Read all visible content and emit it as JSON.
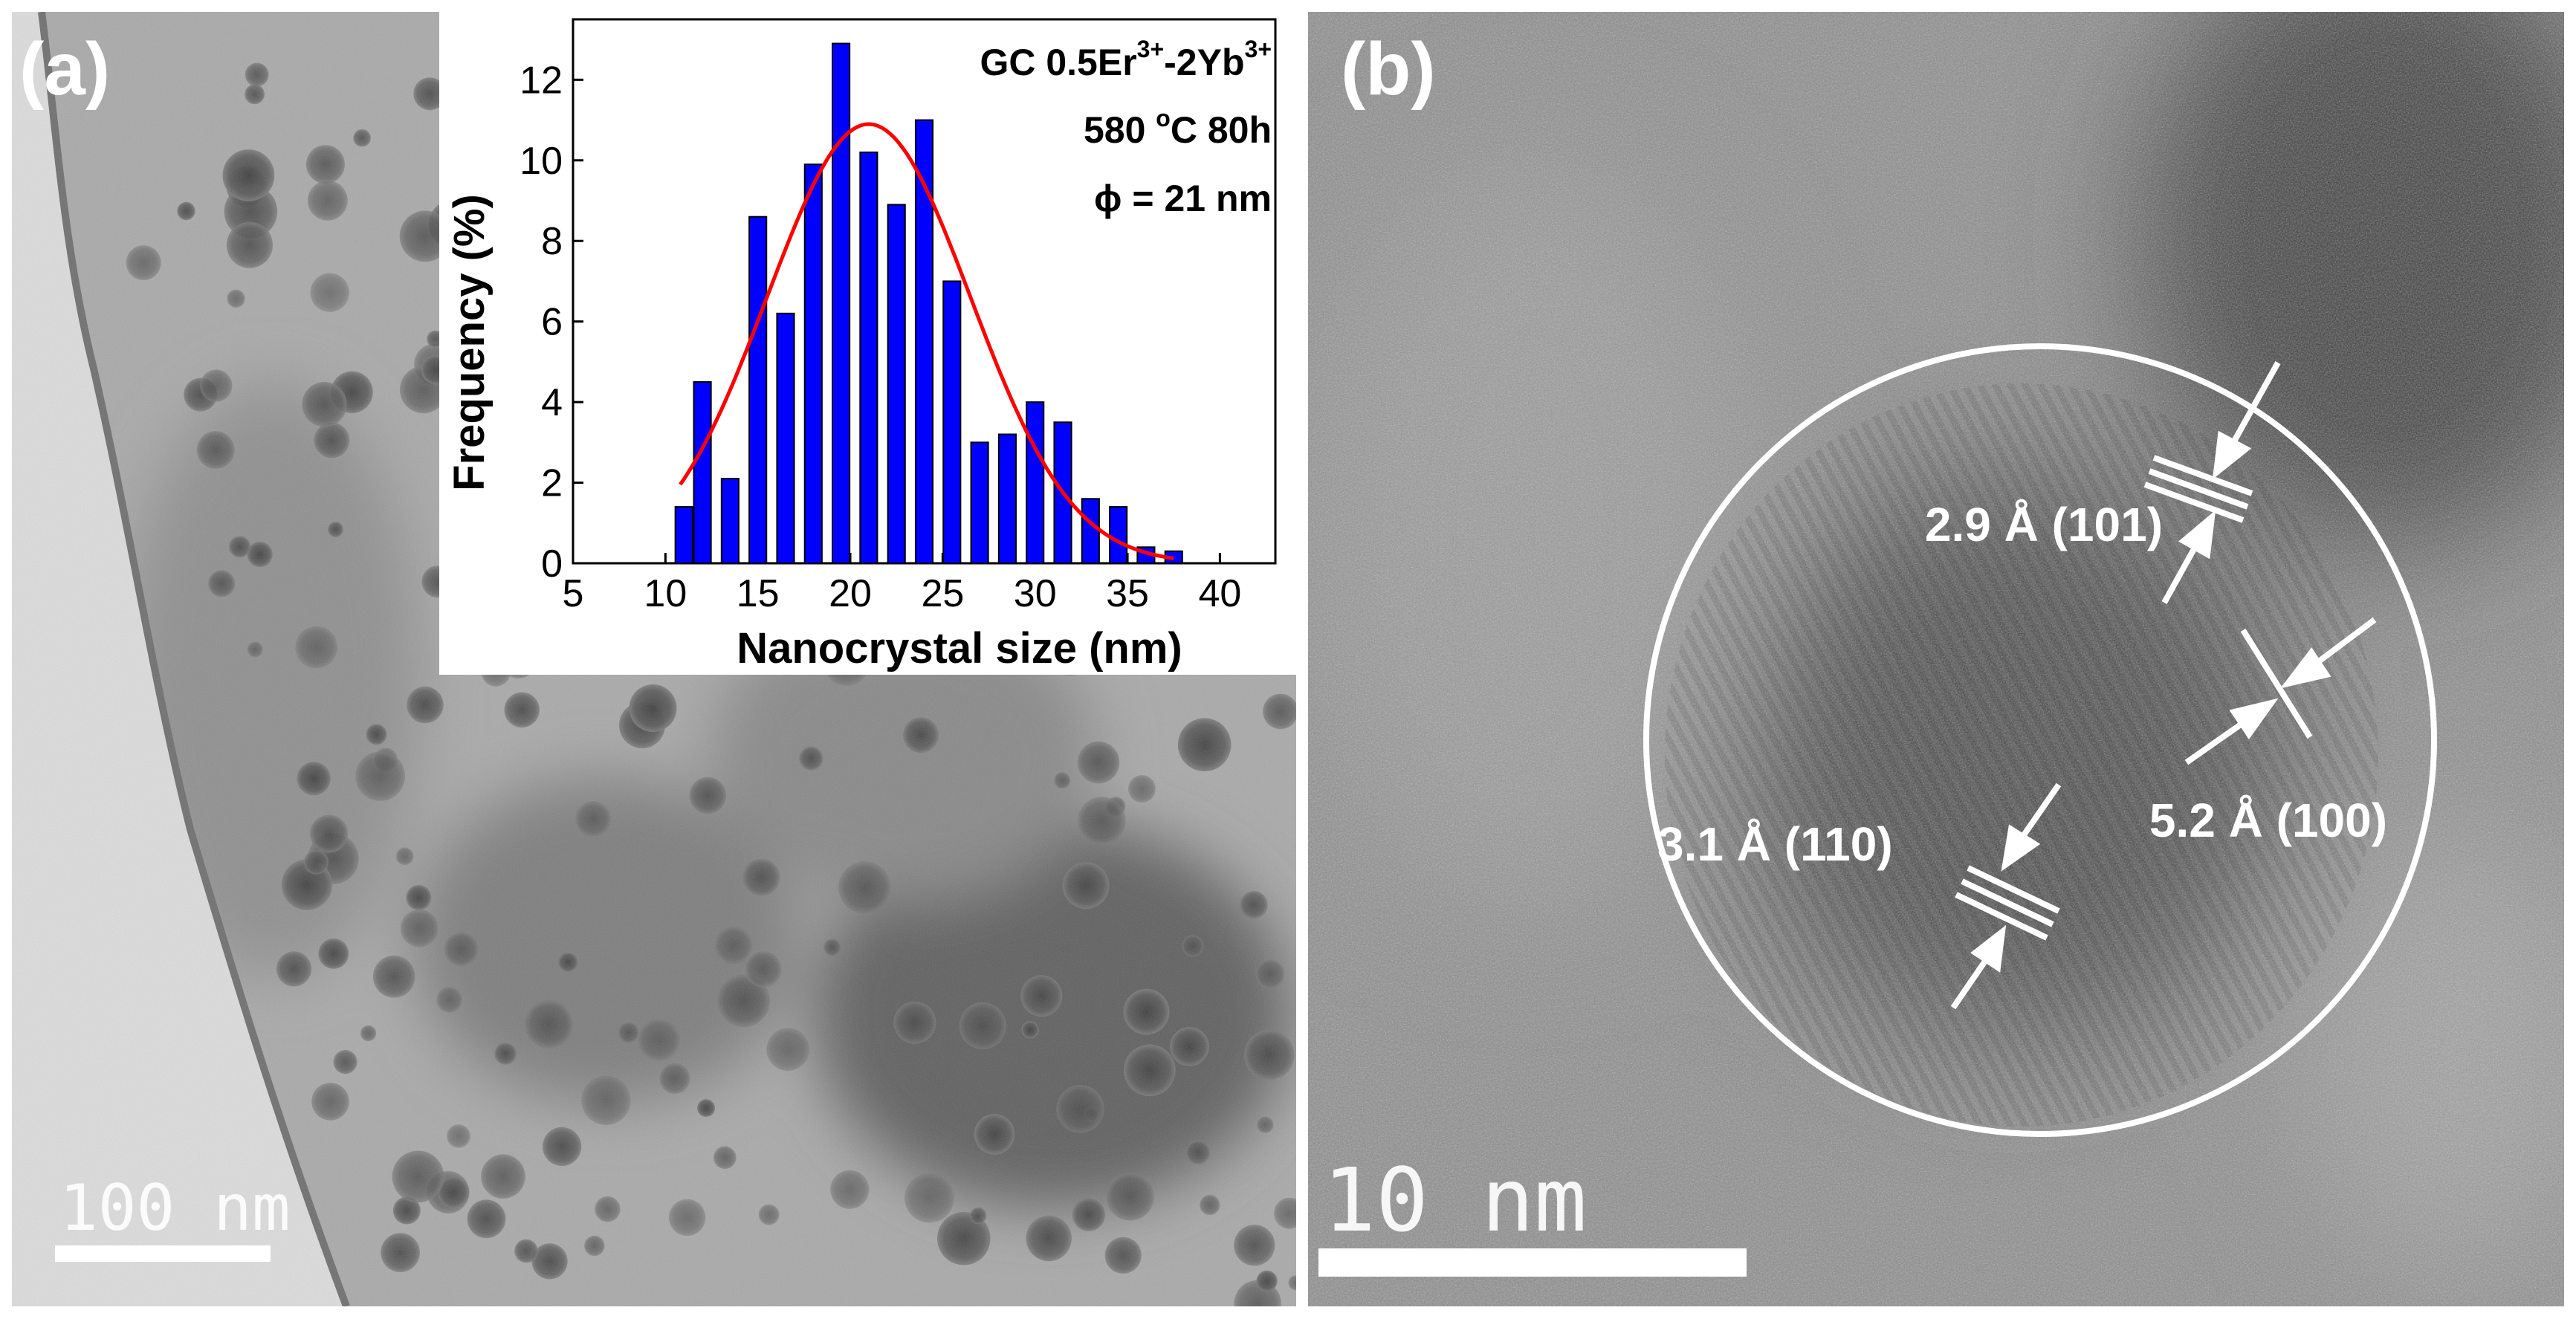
{
  "panel_a": {
    "label": "(a)",
    "scale_bar_label": "100 nm"
  },
  "panel_b": {
    "label": "(b)",
    "scale_bar_label": "10 nm",
    "annotations": [
      {
        "text": "2.9 Å (101)"
      },
      {
        "text": "5.2 Å (100)"
      },
      {
        "text": "3.1 Å (110)"
      }
    ]
  },
  "chart_data": {
    "type": "bar",
    "xlabel": "Nanocrystal size (nm)",
    "ylabel": "Frequency (%)",
    "xlim": [
      5,
      43
    ],
    "ylim": [
      0,
      13.5
    ],
    "xticks": [
      5,
      10,
      15,
      20,
      25,
      30,
      35,
      40
    ],
    "yticks": [
      0,
      2,
      4,
      6,
      8,
      10,
      12
    ],
    "bar_color": "#0000ff",
    "fit_color": "#ff0000",
    "annotations": {
      "line1_prefix": "GC 0.5Er",
      "line1_sup1": "3+",
      "line1_mid": "-2Yb",
      "line1_sup2": "3+",
      "line2_prefix": "580 ",
      "line2_sup": "o",
      "line2_suffix": "C 80h",
      "line3": "ϕ = 21 nm"
    },
    "bars": [
      {
        "x": 11,
        "y": 1.4
      },
      {
        "x": 12,
        "y": 4.5
      },
      {
        "x": 13.5,
        "y": 2.1
      },
      {
        "x": 15,
        "y": 8.6
      },
      {
        "x": 16.5,
        "y": 6.2
      },
      {
        "x": 18,
        "y": 9.9
      },
      {
        "x": 19.5,
        "y": 12.9
      },
      {
        "x": 21,
        "y": 10.2
      },
      {
        "x": 22.5,
        "y": 8.9
      },
      {
        "x": 24,
        "y": 11.0
      },
      {
        "x": 25.5,
        "y": 7.0
      },
      {
        "x": 27,
        "y": 3.0
      },
      {
        "x": 28.5,
        "y": 3.2
      },
      {
        "x": 30,
        "y": 4.0
      },
      {
        "x": 31.5,
        "y": 3.5
      },
      {
        "x": 33,
        "y": 1.6
      },
      {
        "x": 34.5,
        "y": 1.4
      },
      {
        "x": 36,
        "y": 0.4
      },
      {
        "x": 37.5,
        "y": 0.3
      }
    ],
    "fit": {
      "mean": 21,
      "sigma": 5.5,
      "amplitude": 10.9,
      "x_range": [
        10.8,
        37.5
      ]
    }
  }
}
